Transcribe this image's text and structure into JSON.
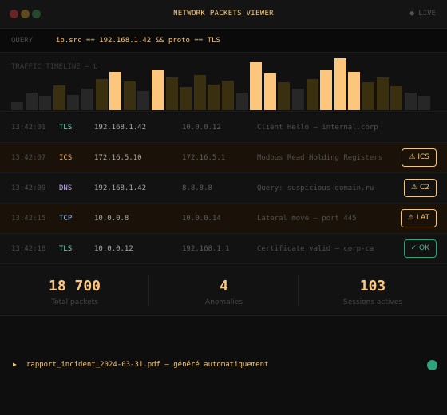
{
  "window": {
    "title": "NETWORK PACKETS VIEWER",
    "live_label": "● LIVE"
  },
  "query": {
    "label": "QUERY",
    "value": "ip.src == 192.168.1.42 && proto == TLS"
  },
  "timeline": {
    "label": "TRAFFIC TIMELINE — L",
    "bars": [
      {
        "level": 0.21,
        "state": "normal"
      },
      {
        "level": 0.45,
        "state": "normal"
      },
      {
        "level": 0.37,
        "state": "normal"
      },
      {
        "level": 0.63,
        "state": "warn"
      },
      {
        "level": 0.39,
        "state": "normal"
      },
      {
        "level": 0.54,
        "state": "normal"
      },
      {
        "level": 0.79,
        "state": "warn"
      },
      {
        "level": 0.97,
        "state": "alert"
      },
      {
        "level": 0.72,
        "state": "warn"
      },
      {
        "level": 0.49,
        "state": "normal"
      },
      {
        "level": 1.0,
        "state": "alert"
      },
      {
        "level": 0.83,
        "state": "warn"
      },
      {
        "level": 0.58,
        "state": "warn"
      },
      {
        "level": 0.88,
        "state": "warn"
      },
      {
        "level": 0.65,
        "state": "warn"
      },
      {
        "level": 0.74,
        "state": "warn"
      },
      {
        "level": 0.45,
        "state": "normal"
      },
      {
        "level": 1.2,
        "state": "alert"
      },
      {
        "level": 0.93,
        "state": "alert"
      },
      {
        "level": 0.71,
        "state": "warn"
      },
      {
        "level": 0.54,
        "state": "normal"
      },
      {
        "level": 0.78,
        "state": "warn"
      },
      {
        "level": 1.0,
        "state": "alert"
      },
      {
        "level": 1.3,
        "state": "alert"
      },
      {
        "level": 0.96,
        "state": "alert"
      },
      {
        "level": 0.71,
        "state": "warn"
      },
      {
        "level": 0.83,
        "state": "warn"
      },
      {
        "level": 0.61,
        "state": "warn"
      },
      {
        "level": 0.45,
        "state": "normal"
      },
      {
        "level": 0.36,
        "state": "normal"
      }
    ]
  },
  "packets": [
    {
      "time": "13:42:01",
      "proto": "TLS",
      "proto_class": "tls",
      "src": "192.168.1.42",
      "dst": "10.0.0.12",
      "info": "Client Hello — internal.corp",
      "flagged": false,
      "badge": ""
    },
    {
      "time": "13:42:07",
      "proto": "ICS",
      "proto_class": "ics",
      "src": "172.16.5.10",
      "dst": "172.16.5.1",
      "info": "Modbus Read Holding Registers",
      "flagged": true,
      "badge": "⚠ ICS",
      "badge_kind": "warn"
    },
    {
      "time": "13:42:09",
      "proto": "DNS",
      "proto_class": "dns",
      "src": "192.168.1.42",
      "dst": "8.8.8.8",
      "info": "Query: suspicious-domain.ru",
      "flagged": false,
      "badge": "⚠ C2",
      "badge_kind": "warn"
    },
    {
      "time": "13:42:15",
      "proto": "TCP",
      "proto_class": "tcp",
      "src": "10.0.0.8",
      "dst": "10.0.0.14",
      "info": "Lateral move — port 445",
      "flagged": true,
      "badge": "⚠ LAT",
      "badge_kind": "warn"
    },
    {
      "time": "13:42:18",
      "proto": "TLS",
      "proto_class": "tls",
      "src": "10.0.0.12",
      "dst": "192.168.1.1",
      "info": "Certificate valid — corp-ca",
      "flagged": false,
      "badge": "✓ OK",
      "badge_kind": "ok"
    }
  ],
  "stats": [
    {
      "value": "18 700",
      "label": "Total packets"
    },
    {
      "value": "4",
      "label": "Anomalies"
    },
    {
      "value": "103",
      "label": "Sessions actives"
    }
  ],
  "footer": {
    "play_glyph": "▶",
    "file_text": "rapport_incident_2024-03-31.pdf — généré automatiquement"
  }
}
